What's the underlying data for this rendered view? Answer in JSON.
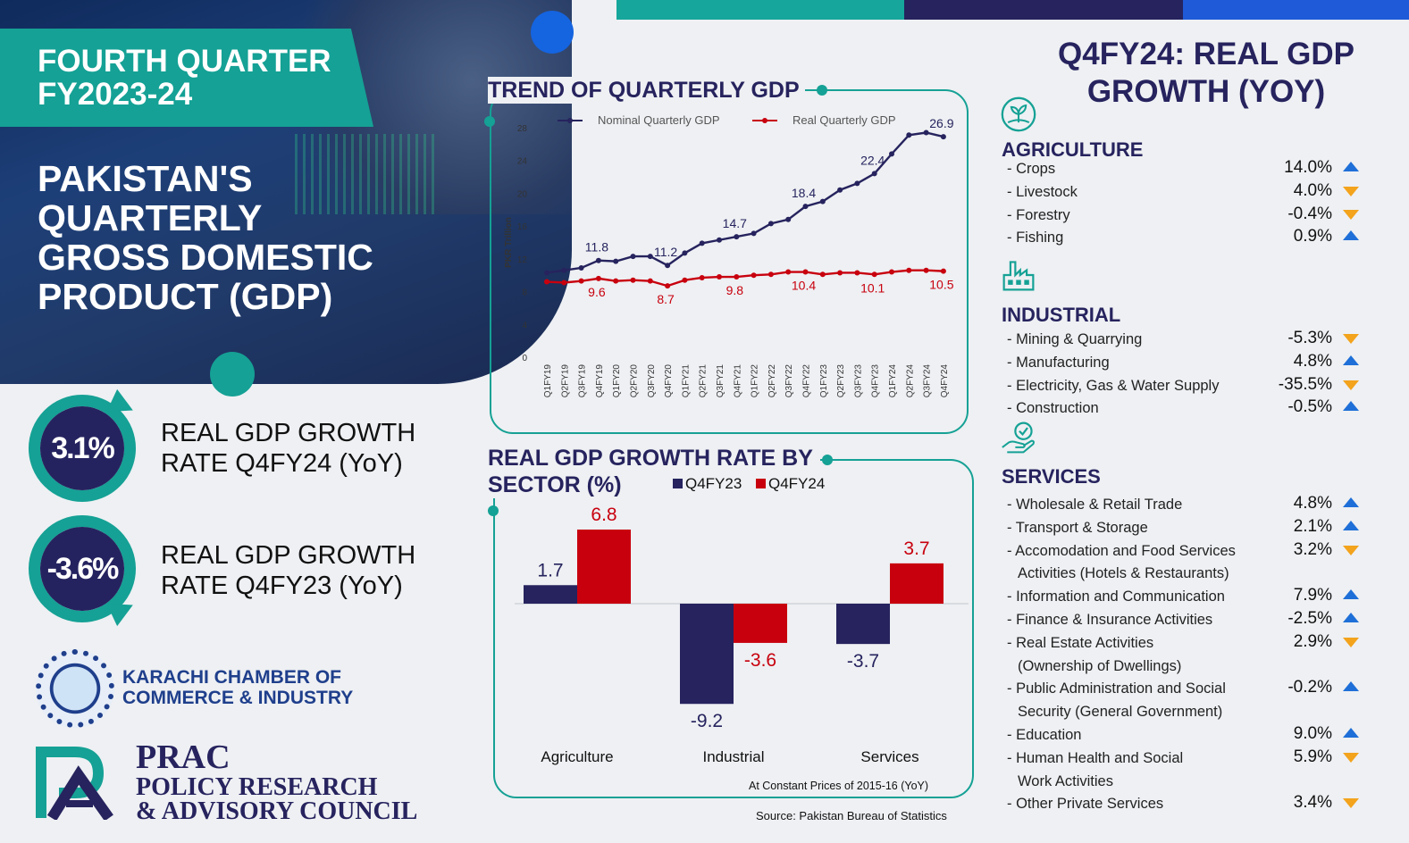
{
  "header": {
    "quarter_line1": "FOURTH QUARTER",
    "quarter_line2": "FY2023-24",
    "title_lines": [
      "PAKISTAN'S",
      "QUARTERLY",
      "GROSS DOMESTIC",
      "PRODUCT (GDP)"
    ]
  },
  "rates": [
    {
      "value": "3.1%",
      "line1": "REAL GDP GROWTH",
      "line2": "RATE Q4FY24 (YoY)"
    },
    {
      "value": "-3.6%",
      "line1": "REAL GDP GROWTH",
      "line2": "RATE Q4FY23 (YoY)"
    }
  ],
  "logos": {
    "kcci_line1": "KARACHI CHAMBER OF",
    "kcci_line2": "COMMERCE & INDUSTRY",
    "prac_line1": "PRAC",
    "prac_line2": "POLICY RESEARCH",
    "prac_line3": "& ADVISORY COUNCIL"
  },
  "colors": {
    "teal": "#15a195",
    "navy": "#26235e",
    "red": "#c8000e",
    "blue": "#1564e0",
    "up": "#1f6fd8",
    "down": "#f3a31c"
  },
  "chart_data": [
    {
      "type": "line",
      "title": "TREND OF QUARTERLY GDP",
      "ylabel": "PKR Trillion",
      "ylim": [
        0,
        28
      ],
      "yticks": [
        0,
        4,
        8,
        12,
        16,
        20,
        24,
        28
      ],
      "x": [
        "Q1FY19",
        "Q2FY19",
        "Q3FY19",
        "Q4FY19",
        "Q1FY20",
        "Q2FY20",
        "Q3FY20",
        "Q4FY20",
        "Q1FY21",
        "Q2FY21",
        "Q3FY21",
        "Q4FY21",
        "Q1FY22",
        "Q2FY22",
        "Q3FY22",
        "Q4FY22",
        "Q1FY23",
        "Q2FY23",
        "Q3FY23",
        "Q4FY23",
        "Q1FY24",
        "Q2FY24",
        "Q3FY24",
        "Q4FY24"
      ],
      "series": [
        {
          "name": "Nominal Quarterly GDP",
          "values": [
            10.3,
            10.6,
            10.9,
            11.8,
            11.7,
            12.3,
            12.3,
            11.2,
            12.7,
            13.9,
            14.3,
            14.7,
            15.1,
            16.3,
            16.8,
            18.4,
            19.0,
            20.4,
            21.2,
            22.4,
            24.8,
            27.1,
            27.4,
            26.9
          ],
          "labels": {
            "3": "11.8",
            "7": "11.2",
            "11": "14.7",
            "15": "18.4",
            "19": "22.4",
            "23": "26.9"
          }
        },
        {
          "name": "Real Quarterly GDP",
          "values": [
            9.2,
            9.1,
            9.3,
            9.6,
            9.3,
            9.4,
            9.3,
            8.7,
            9.4,
            9.7,
            9.8,
            9.8,
            10.0,
            10.1,
            10.4,
            10.4,
            10.1,
            10.3,
            10.3,
            10.1,
            10.4,
            10.6,
            10.6,
            10.5
          ],
          "labels": {
            "3": "9.6",
            "7": "8.7",
            "11": "9.8",
            "15": "10.4",
            "19": "10.1",
            "23": "10.5"
          }
        }
      ]
    },
    {
      "type": "bar",
      "title": "REAL GDP GROWTH RATE BY SECTOR (%)",
      "categories": [
        "Agriculture",
        "Industrial",
        "Services"
      ],
      "series": [
        {
          "name": "Q4FY23",
          "values": [
            1.7,
            -9.2,
            -3.7
          ]
        },
        {
          "name": "Q4FY24",
          "values": [
            6.8,
            -3.6,
            3.7
          ]
        }
      ],
      "value_labels": [
        [
          "1.7",
          "-9.2",
          "-3.7"
        ],
        [
          "6.8",
          "-3.6",
          "3.7"
        ]
      ],
      "ylim": [
        -10,
        8
      ],
      "note": "At Constant Prices of 2015-16 (YoY)"
    }
  ],
  "sectors": {
    "title_line1": "Q4FY24: REAL GDP",
    "title_line2": "GROWTH (YOY)",
    "groups": [
      {
        "name": "AGRICULTURE",
        "icon": "plant-icon",
        "items": [
          {
            "lines": [
              "- Crops"
            ],
            "value": "14.0%",
            "dir": "up"
          },
          {
            "lines": [
              "- Livestock"
            ],
            "value": "4.0%",
            "dir": "down"
          },
          {
            "lines": [
              "- Forestry"
            ],
            "value": "-0.4%",
            "dir": "down"
          },
          {
            "lines": [
              "- Fishing"
            ],
            "value": "0.9%",
            "dir": "up"
          }
        ]
      },
      {
        "name": "INDUSTRIAL",
        "icon": "factory-icon",
        "items": [
          {
            "lines": [
              "- Mining & Quarrying"
            ],
            "value": "-5.3%",
            "dir": "down"
          },
          {
            "lines": [
              "- Manufacturing"
            ],
            "value": "4.8%",
            "dir": "up"
          },
          {
            "lines": [
              "- Electricity, Gas & Water Supply"
            ],
            "value": "-35.5%",
            "dir": "down"
          },
          {
            "lines": [
              "- Construction"
            ],
            "value": "-0.5%",
            "dir": "up"
          }
        ]
      },
      {
        "name": "SERVICES",
        "icon": "hand-check-icon",
        "items": [
          {
            "lines": [
              "- Wholesale & Retail Trade"
            ],
            "value": "4.8%",
            "dir": "up"
          },
          {
            "lines": [
              "- Transport & Storage"
            ],
            "value": "2.1%",
            "dir": "up"
          },
          {
            "lines": [
              "- Accomodation and Food Services",
              "Activities (Hotels & Restaurants)"
            ],
            "value": "3.2%",
            "dir": "down"
          },
          {
            "lines": [
              "- Information and Communication"
            ],
            "value": "7.9%",
            "dir": "up"
          },
          {
            "lines": [
              "- Finance & Insurance Activities"
            ],
            "value": "-2.5%",
            "dir": "up"
          },
          {
            "lines": [
              "- Real Estate Activities",
              "(Ownership of Dwellings)"
            ],
            "value": "2.9%",
            "dir": "down"
          },
          {
            "lines": [
              "- Public Administration and Social",
              "Security (General Government)"
            ],
            "value": "-0.2%",
            "dir": "up"
          },
          {
            "lines": [
              "- Education"
            ],
            "value": "9.0%",
            "dir": "up"
          },
          {
            "lines": [
              "- Human Health and Social",
              "Work Activities"
            ],
            "value": "5.9%",
            "dir": "down"
          },
          {
            "lines": [
              "- Other Private Services"
            ],
            "value": "3.4%",
            "dir": "down"
          }
        ]
      }
    ]
  },
  "source": "Source: Pakistan Bureau of Statistics"
}
